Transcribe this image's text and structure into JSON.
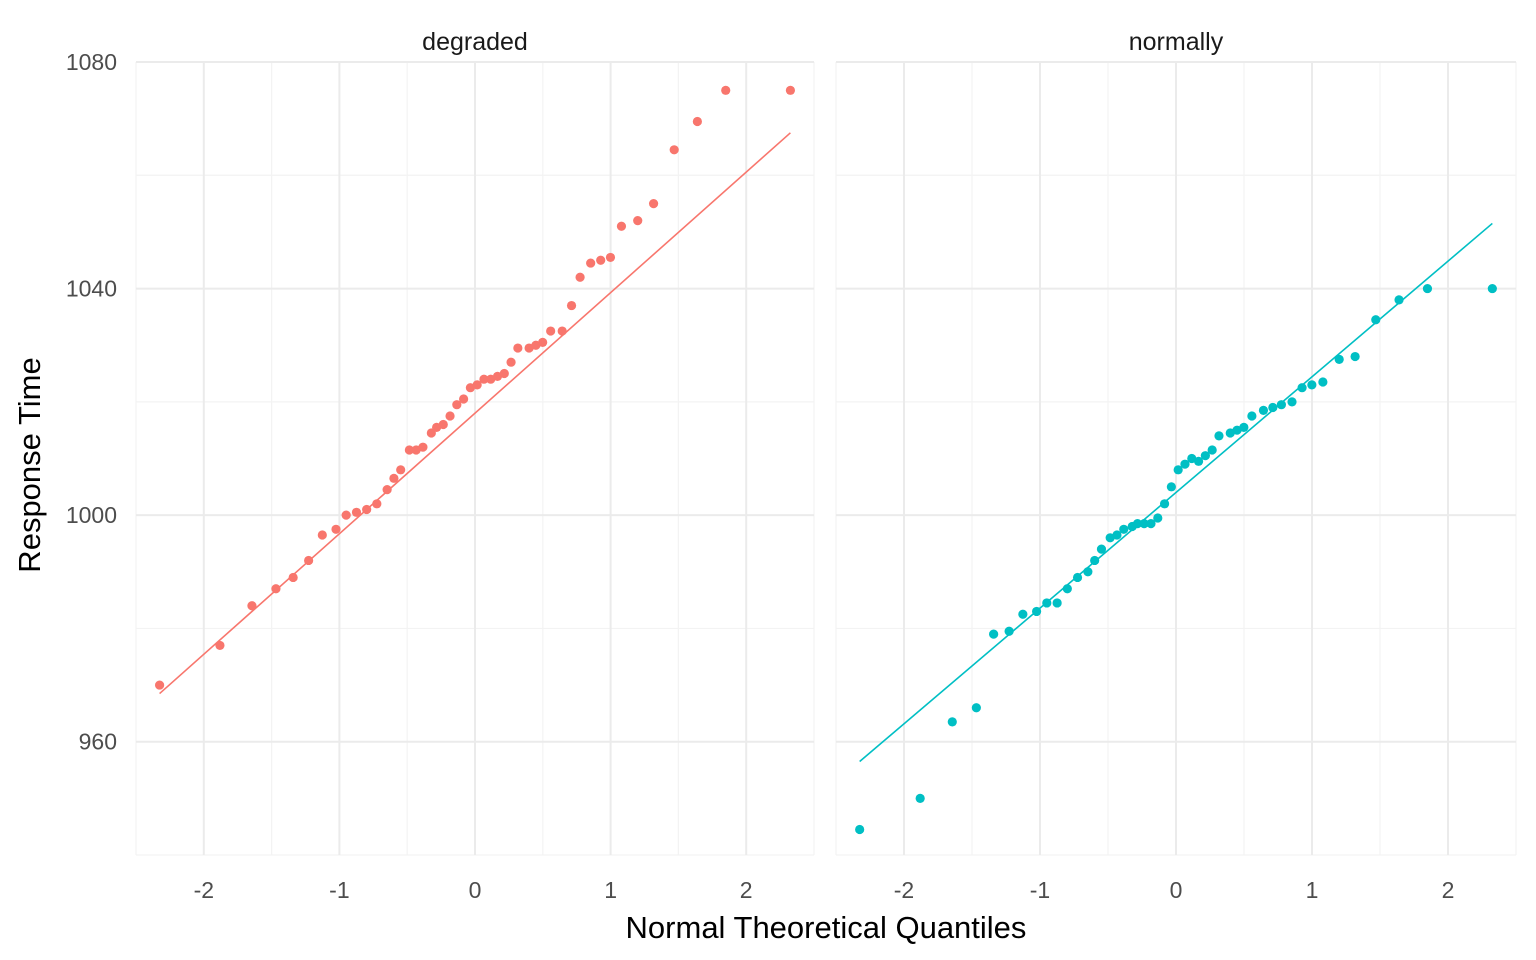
{
  "colors": {
    "degraded": "#F8766D",
    "normally": "#00BFC4"
  },
  "chart_data": {
    "type": "scatter",
    "subtype": "qq-plot-faceted",
    "xlabel": "Normal Theoretical Quantiles",
    "ylabel": "Response Time",
    "xlim": [
      -2.5,
      2.5
    ],
    "ylim": [
      940,
      1080
    ],
    "x_ticks": [
      -2,
      -1,
      0,
      1,
      2
    ],
    "x_tick_labels": [
      "-2",
      "-1",
      "0",
      "1",
      "2"
    ],
    "y_ticks": [
      960,
      1000,
      1040,
      1080
    ],
    "y_tick_labels": [
      "960",
      "1000",
      "1040",
      "1080"
    ],
    "grid": true,
    "legend": "none",
    "panels": [
      {
        "name": "degraded",
        "line": {
          "x": [
            -2.326,
            2.326
          ],
          "y": [
            968.5,
            1067.5
          ]
        },
        "x": [
          -2.326,
          -1.881,
          -1.645,
          -1.468,
          -1.341,
          -1.227,
          -1.126,
          -1.025,
          -0.95,
          -0.874,
          -0.799,
          -0.724,
          -0.648,
          -0.598,
          -0.548,
          -0.484,
          -0.434,
          -0.384,
          -0.322,
          -0.283,
          -0.234,
          -0.184,
          -0.134,
          -0.084,
          -0.034,
          0.016,
          0.066,
          0.116,
          0.166,
          0.216,
          0.266,
          0.316,
          0.399,
          0.449,
          0.499,
          0.558,
          0.643,
          0.712,
          0.775,
          0.853,
          0.927,
          0.999,
          1.08,
          1.2,
          1.317,
          1.469,
          1.64,
          1.849,
          2.326
        ],
        "y": [
          970,
          977,
          984,
          987,
          989,
          992,
          996.5,
          997.5,
          1000,
          1000.5,
          1001,
          1002,
          1004.5,
          1006.5,
          1008,
          1011.5,
          1011.5,
          1012,
          1014.5,
          1015.5,
          1016,
          1017.5,
          1019.5,
          1020.5,
          1022.5,
          1023,
          1024,
          1024,
          1024.5,
          1025,
          1027,
          1029.5,
          1029.5,
          1030,
          1030.5,
          1032.5,
          1032.5,
          1037,
          1042,
          1044.5,
          1045,
          1045.5,
          1051,
          1052,
          1055,
          1064.5,
          1069.5,
          1075,
          1075
        ]
      },
      {
        "name": "normally",
        "line": {
          "x": [
            -2.326,
            2.326
          ],
          "y": [
            956.5,
            1051.5
          ]
        },
        "x": [
          -2.326,
          -1.881,
          -1.645,
          -1.468,
          -1.341,
          -1.227,
          -1.126,
          -1.025,
          -0.95,
          -0.874,
          -0.799,
          -0.724,
          -0.648,
          -0.598,
          -0.548,
          -0.484,
          -0.434,
          -0.384,
          -0.322,
          -0.283,
          -0.234,
          -0.184,
          -0.134,
          -0.084,
          -0.034,
          0.016,
          0.066,
          0.116,
          0.166,
          0.216,
          0.266,
          0.316,
          0.399,
          0.449,
          0.499,
          0.558,
          0.643,
          0.712,
          0.775,
          0.853,
          0.927,
          0.999,
          1.08,
          1.2,
          1.317,
          1.469,
          1.64,
          1.849,
          2.326
        ],
        "y": [
          944.5,
          950,
          963.5,
          966,
          979,
          979.5,
          982.5,
          983,
          984.5,
          984.5,
          987,
          989,
          990,
          992,
          994,
          996,
          996.5,
          997.5,
          998,
          998.5,
          998.5,
          998.5,
          999.5,
          1002,
          1005,
          1008,
          1009,
          1010,
          1009.5,
          1010.5,
          1011.5,
          1014,
          1014.5,
          1015,
          1015.5,
          1017.5,
          1018.5,
          1019,
          1019.5,
          1020,
          1022.5,
          1023,
          1023.5,
          1027.5,
          1028,
          1034.5,
          1038,
          1040,
          1040
        ]
      }
    ]
  }
}
